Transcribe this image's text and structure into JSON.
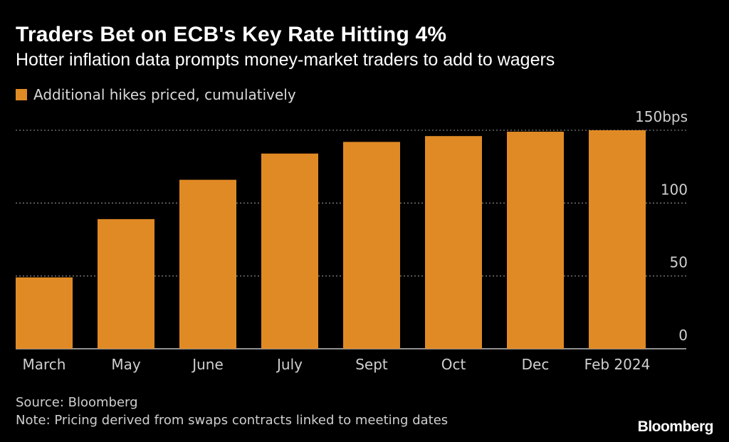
{
  "header": {
    "title": "Traders Bet on ECB's Key Rate Hitting 4%",
    "subtitle": "Hotter inflation data prompts money-market traders to add to wagers"
  },
  "legend": {
    "label": "Additional hikes priced, cumulatively",
    "color": "#e08a25"
  },
  "footer": {
    "source": "Source: Bloomberg",
    "note": "Note: Pricing derived from swaps contracts linked to meeting dates",
    "brand": "Bloomberg"
  },
  "chart_data": {
    "type": "bar",
    "title": "Traders Bet on ECB's Key Rate Hitting 4%",
    "subtitle": "Hotter inflation data prompts money-market traders to add to wagers",
    "xlabel": "",
    "ylabel": "",
    "categories": [
      "March",
      "May",
      "June",
      "July",
      "Sept",
      "Oct",
      "Dec",
      "Feb 2024"
    ],
    "series": [
      {
        "name": "Additional hikes priced, cumulatively",
        "values": [
          49,
          89,
          116,
          134,
          142,
          146,
          149,
          150
        ]
      }
    ],
    "ylim": [
      0,
      150
    ],
    "yticks": [
      {
        "value": 0,
        "label": "0"
      },
      {
        "value": 50,
        "label": "50"
      },
      {
        "value": 100,
        "label": "100"
      },
      {
        "value": 150,
        "label": "150bps"
      }
    ],
    "grid": true,
    "legend_position": "top-left",
    "bar_color": "#e08a25",
    "grid_color": "#7a7a7a"
  }
}
